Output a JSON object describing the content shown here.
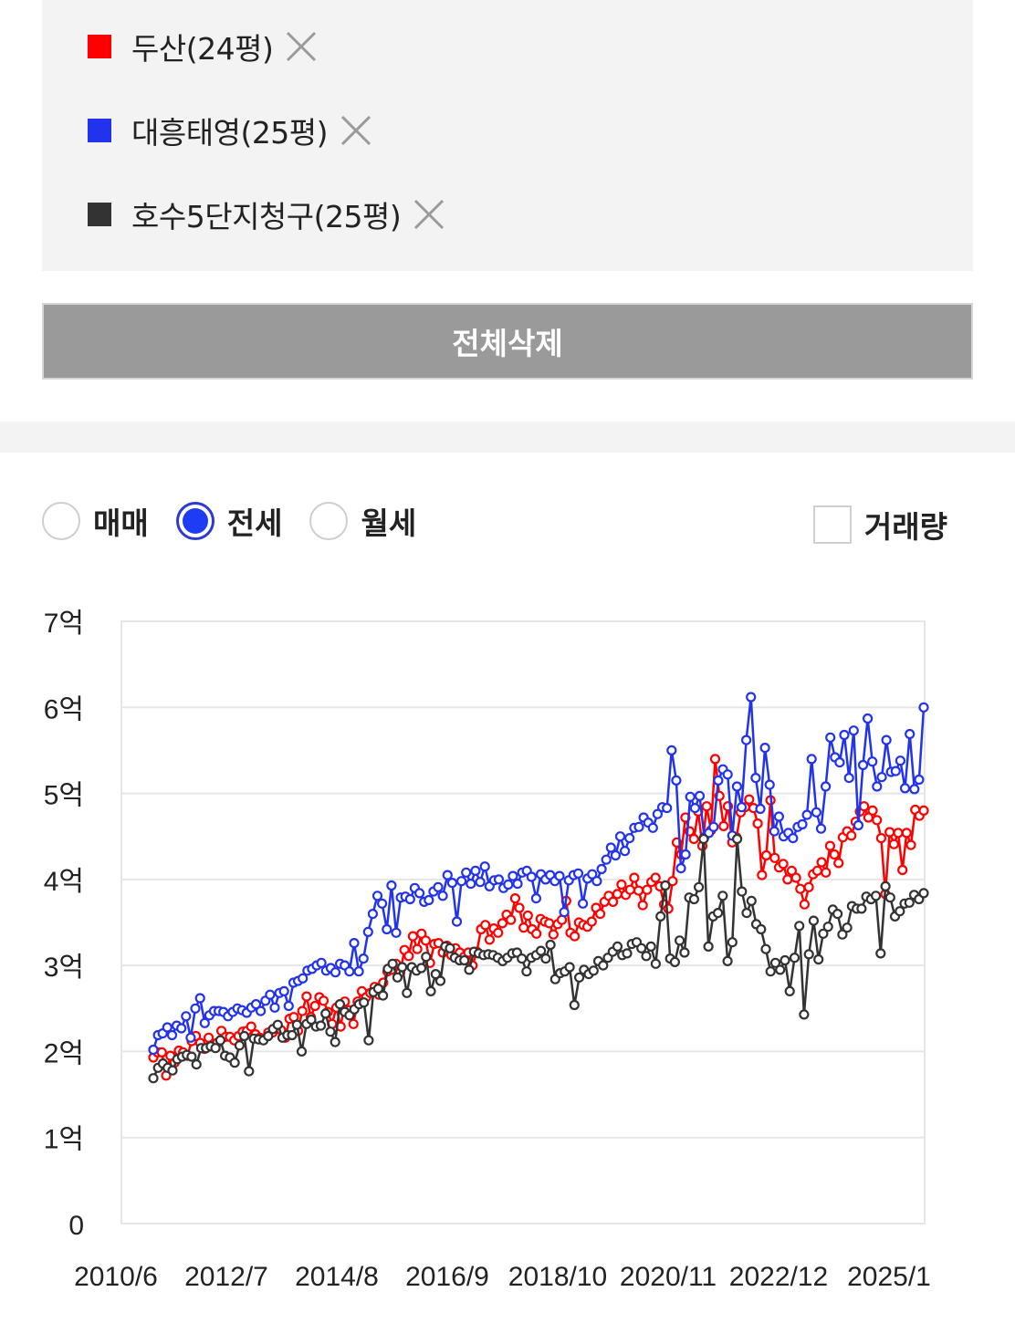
{
  "legend": {
    "items": [
      {
        "label": "두산(24평)",
        "color": "#ff0000",
        "icon": "close-icon"
      },
      {
        "label": "대흥태영(25평)",
        "color": "#2233ee",
        "icon": "close-icon"
      },
      {
        "label": "호수5단지청구(25평)",
        "color": "#333333",
        "icon": "close-icon"
      }
    ]
  },
  "delete_all_label": "전체삭제",
  "tabs": {
    "options": [
      "매매",
      "전세",
      "월세"
    ],
    "selected": "전세"
  },
  "volume_label": "거래량",
  "volume_checked": false,
  "chart_data": {
    "type": "line",
    "ylim": [
      0,
      7
    ],
    "y_ticks": [
      0,
      1,
      2,
      3,
      4,
      5,
      6,
      7
    ],
    "y_tick_labels": [
      "0",
      "1억",
      "2억",
      "3억",
      "4억",
      "5억",
      "6억",
      "7억"
    ],
    "x_tick_labels": [
      "2010/6",
      "2012/7",
      "2014/8",
      "2016/9",
      "2018/10",
      "2020/11",
      "2022/12",
      "2025/1"
    ],
    "grid": true,
    "series": [
      {
        "name": "두산(24평)",
        "color": "#ff0000",
        "values": [
          1.93,
          1.99,
          1.99,
          1.72,
          1.95,
          1.87,
          2.01,
          1.99,
          1.95,
          2.12,
          2.18,
          2.1,
          2.03,
          2.16,
          2.08,
          2.1,
          2.24,
          2.17,
          2.17,
          2.13,
          2.18,
          2.23,
          2.24,
          2.29,
          2.2,
          2.16,
          2.15,
          2.22,
          2.22,
          2.29,
          2.25,
          2.16,
          2.38,
          2.4,
          2.24,
          2.47,
          2.64,
          2.4,
          2.53,
          2.63,
          2.59,
          2.46,
          2.32,
          2.51,
          2.29,
          2.58,
          2.48,
          2.32,
          2.58,
          2.7,
          2.63,
          2.68,
          2.75,
          2.66,
          2.8,
          2.93,
          2.95,
          3.02,
          2.92,
          3.18,
          3.11,
          3.34,
          3.19,
          3.37,
          3.29,
          3.03,
          3.25,
          3.26,
          3.15,
          3.23,
          3.12,
          3.2,
          3.15,
          3.1,
          3.15,
          3.0,
          3.16,
          3.42,
          3.47,
          3.3,
          3.43,
          3.38,
          3.49,
          3.59,
          3.53,
          3.78,
          3.67,
          3.44,
          3.58,
          3.42,
          3.37,
          3.54,
          3.51,
          3.49,
          3.36,
          3.48,
          3.53,
          3.75,
          3.38,
          3.34,
          3.5,
          3.47,
          3.45,
          3.51,
          3.67,
          3.6,
          3.74,
          3.81,
          3.74,
          3.83,
          3.94,
          3.82,
          3.88,
          4.02,
          3.87,
          3.7,
          3.88,
          3.97,
          4.02,
          3.92,
          3.71,
          3.66,
          3.98,
          4.43,
          4.29,
          4.72,
          4.56,
          4.47,
          4.79,
          4.39,
          4.85,
          4.57,
          5.4,
          4.97,
          4.62,
          4.85,
          4.43,
          4.49,
          4.78,
          4.84,
          4.93,
          4.83,
          4.65,
          4.05,
          4.28,
          4.92,
          4.25,
          4.14,
          4.18,
          4.0,
          4.1,
          4.02,
          3.89,
          3.71,
          3.91,
          4.06,
          4.1,
          4.2,
          4.08,
          4.39,
          4.29,
          4.19,
          4.49,
          4.56,
          4.51,
          4.67,
          4.79,
          4.85,
          4.72,
          4.8,
          4.69,
          4.48,
          3.83,
          4.55,
          4.41,
          4.54,
          4.11,
          4.54,
          4.4,
          4.81,
          4.74,
          4.8
        ]
      },
      {
        "name": "대흥태영(25평)",
        "color": "#2233ee",
        "values": [
          2.02,
          2.19,
          2.21,
          2.28,
          2.19,
          2.3,
          2.27,
          2.41,
          2.16,
          2.5,
          2.62,
          2.33,
          2.42,
          2.47,
          2.47,
          2.46,
          2.41,
          2.46,
          2.5,
          2.48,
          2.45,
          2.51,
          2.55,
          2.47,
          2.59,
          2.66,
          2.51,
          2.68,
          2.7,
          2.53,
          2.8,
          2.82,
          2.85,
          2.94,
          2.96,
          3.0,
          3.03,
          2.94,
          2.97,
          2.92,
          3.02,
          3.0,
          2.93,
          3.26,
          2.93,
          3.08,
          3.39,
          3.6,
          3.81,
          3.72,
          3.42,
          3.93,
          3.38,
          3.79,
          3.8,
          3.77,
          3.9,
          3.84,
          3.74,
          3.76,
          3.86,
          3.91,
          3.81,
          4.05,
          3.96,
          3.51,
          3.98,
          4.08,
          3.95,
          4.1,
          3.97,
          4.15,
          3.92,
          3.99,
          4.0,
          3.9,
          3.94,
          4.04,
          3.95,
          4.08,
          4.1,
          4.03,
          3.78,
          4.06,
          4.0,
          4.05,
          3.98,
          4.04,
          3.62,
          3.99,
          4.05,
          4.07,
          3.72,
          4.01,
          4.06,
          3.98,
          4.12,
          4.23,
          4.37,
          4.28,
          4.5,
          4.33,
          4.48,
          4.6,
          4.61,
          4.72,
          4.66,
          4.6,
          4.76,
          4.84,
          4.83,
          5.5,
          5.15,
          4.13,
          4.29,
          4.96,
          4.83,
          4.97,
          4.49,
          4.54,
          4.61,
          5.15,
          5.28,
          5.22,
          4.51,
          5.08,
          4.84,
          5.62,
          6.12,
          5.18,
          4.82,
          5.53,
          5.1,
          4.56,
          4.73,
          4.5,
          4.54,
          4.48,
          4.61,
          4.64,
          4.75,
          5.4,
          4.78,
          4.59,
          5.08,
          5.65,
          5.42,
          5.36,
          5.68,
          5.18,
          5.73,
          4.63,
          5.33,
          5.87,
          5.37,
          5.08,
          5.19,
          5.62,
          5.25,
          5.26,
          5.38,
          5.06,
          5.69,
          5.05,
          5.16,
          6.0
        ]
      },
      {
        "name": "호수5단지청구(25평)",
        "color": "#333333",
        "values": [
          1.69,
          1.81,
          1.86,
          1.81,
          1.78,
          1.91,
          1.94,
          1.96,
          1.94,
          1.85,
          2.04,
          2.04,
          2.06,
          2.04,
          2.13,
          1.95,
          1.93,
          1.87,
          2.07,
          2.18,
          1.77,
          2.15,
          2.14,
          2.13,
          2.18,
          2.26,
          2.31,
          2.16,
          2.19,
          2.19,
          2.31,
          2.0,
          2.32,
          2.37,
          2.29,
          2.3,
          2.44,
          2.23,
          2.11,
          2.55,
          2.46,
          2.42,
          2.49,
          2.55,
          2.57,
          2.13,
          2.69,
          2.73,
          2.65,
          2.96,
          3.02,
          2.86,
          2.98,
          2.68,
          2.98,
          2.94,
          2.97,
          3.1,
          2.7,
          2.9,
          2.82,
          3.22,
          3.2,
          3.09,
          3.06,
          3.06,
          2.95,
          3.16,
          3.14,
          3.12,
          3.13,
          3.12,
          3.09,
          3.05,
          3.09,
          3.14,
          3.15,
          3.08,
          2.93,
          3.09,
          3.12,
          3.17,
          3.08,
          3.24,
          2.84,
          2.91,
          2.93,
          2.98,
          2.54,
          2.86,
          2.95,
          2.9,
          2.94,
          3.05,
          3.0,
          3.09,
          3.16,
          3.22,
          3.12,
          3.14,
          3.25,
          3.27,
          3.2,
          3.11,
          3.22,
          3.02,
          3.57,
          3.93,
          3.08,
          3.04,
          3.29,
          3.15,
          3.79,
          3.77,
          3.91,
          4.47,
          3.22,
          3.57,
          3.61,
          3.81,
          3.05,
          3.27,
          4.47,
          3.86,
          3.61,
          3.75,
          3.48,
          3.42,
          3.19,
          2.93,
          3.03,
          2.95,
          3.06,
          2.7,
          3.09,
          3.46,
          2.43,
          3.13,
          3.52,
          3.07,
          3.37,
          3.45,
          3.65,
          3.6,
          3.36,
          3.44,
          3.69,
          3.66,
          3.66,
          3.8,
          3.77,
          3.81,
          3.14,
          3.92,
          3.79,
          3.57,
          3.63,
          3.72,
          3.73,
          3.82,
          3.77,
          3.84
        ]
      }
    ]
  }
}
